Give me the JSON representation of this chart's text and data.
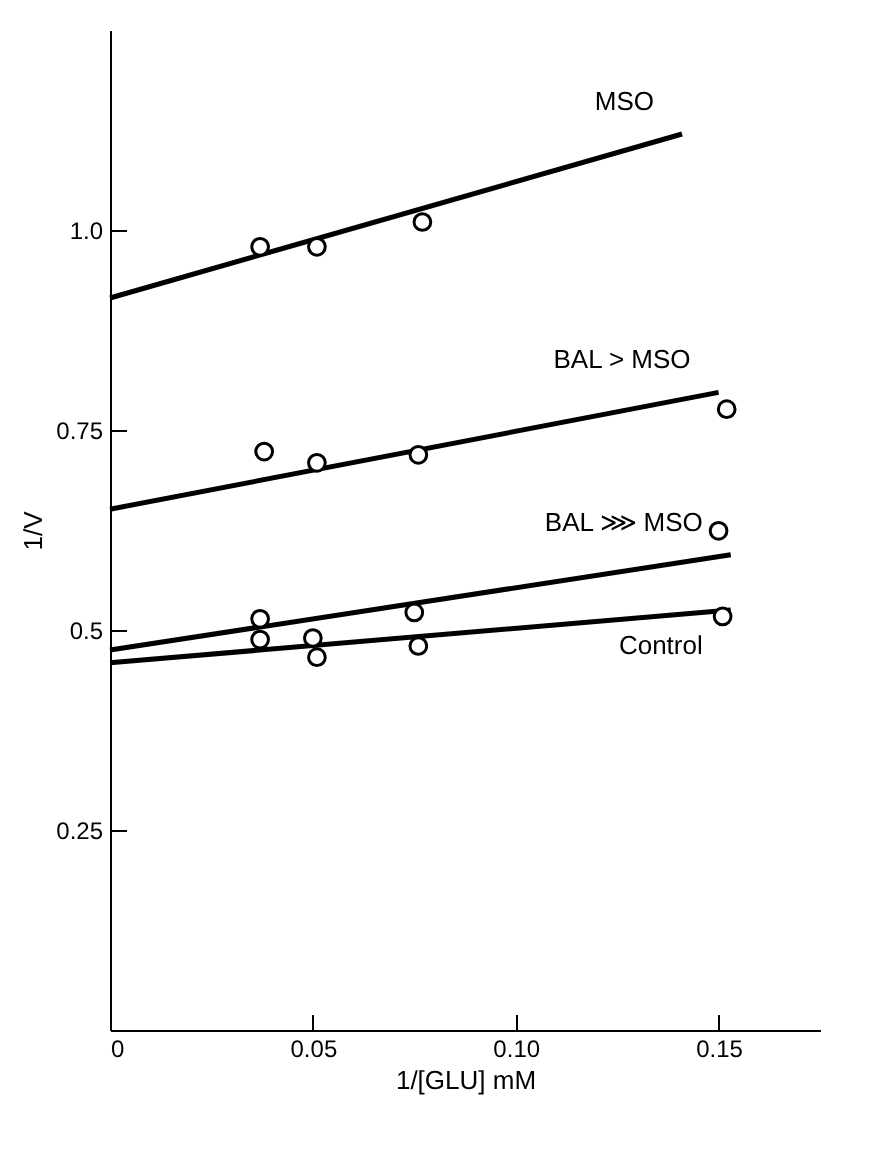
{
  "chart_data": {
    "type": "scatter",
    "xlabel": "1/[GLU] mM",
    "ylabel": "1/V",
    "xlim": [
      0,
      0.175
    ],
    "ylim": [
      0,
      1.25
    ],
    "xticks": [
      0,
      0.05,
      {
        "value": 0.1,
        "label": "0.10"
      },
      0.15
    ],
    "yticks": [
      0.25,
      0.5,
      0.75,
      {
        "value": 1,
        "label": "1.0"
      }
    ],
    "series": [
      {
        "type": "line",
        "name": "MSO",
        "color": "#000000",
        "x": [
          0,
          0.141
        ],
        "values": [
          0.915,
          1.12
        ]
      },
      {
        "type": "line",
        "name": "BAL > MSO",
        "color": "#000000",
        "x": [
          0,
          0.15
        ],
        "values": [
          0.651,
          0.797
        ]
      },
      {
        "type": "line",
        "name": "BAL ⋙ MSO",
        "color": "#000000",
        "x": [
          0,
          0.153
        ],
        "values": [
          0.475,
          0.594
        ]
      },
      {
        "type": "line",
        "name": "Control",
        "color": "#000000",
        "x": [
          0,
          0.153
        ],
        "values": [
          0.459,
          0.525
        ]
      },
      {
        "marker": "circle",
        "color": "#000000",
        "x": [
          0.037,
          0.051,
          0.077
        ],
        "values": [
          0.979,
          0.979,
          1.01
        ]
      },
      {
        "marker": "circle",
        "color": "#000000",
        "x": [
          0.038,
          0.051,
          0.076,
          0.152
        ],
        "values": [
          0.723,
          0.709,
          0.719,
          0.776
        ]
      },
      {
        "marker": "circle",
        "color": "#000000",
        "x": [
          0.037,
          0.05,
          0.075,
          0.15
        ],
        "values": [
          0.514,
          0.49,
          0.522,
          0.624
        ]
      },
      {
        "marker": "circle",
        "color": "#000000",
        "x": [
          0.037,
          0.051,
          0.076,
          0.151
        ],
        "values": [
          0.488,
          0.466,
          0.48,
          0.517
        ]
      }
    ]
  }
}
